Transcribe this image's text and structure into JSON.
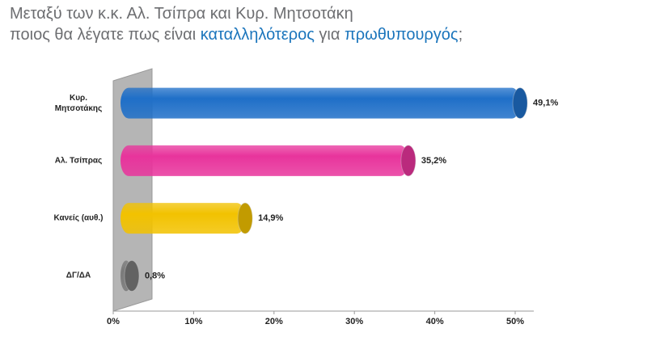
{
  "chart_data": {
    "type": "bar",
    "orientation": "horizontal",
    "title_lines": [
      [
        {
          "text": "Μεταξύ των κ.κ. Αλ. Τσίπρα και Κυρ. Μητσοτάκη",
          "color": "#6d6e71"
        }
      ],
      [
        {
          "text": "ποιος θα λέγατε πως είναι ",
          "color": "#6d6e71"
        },
        {
          "text": "καταλληλότερος",
          "color": "#1b75bc"
        },
        {
          "text": " για ",
          "color": "#6d6e71"
        },
        {
          "text": "πρωθυπουργός",
          "color": "#1b75bc"
        },
        {
          "text": ";",
          "color": "#6d6e71"
        }
      ]
    ],
    "categories": [
      "Κυρ. Μητσοτάκης",
      "Αλ. Τσίπρας",
      "Κανείς (αυθ.)",
      "ΔΓ/ΔΑ"
    ],
    "values": [
      49.1,
      35.2,
      14.9,
      0.8
    ],
    "value_labels": [
      "49,1%",
      "35,2%",
      "14,9%",
      "0,8%"
    ],
    "colors": [
      "#1f6fc8",
      "#e8349c",
      "#f2c200",
      "#7a7a7a"
    ],
    "xlim": [
      0,
      50
    ],
    "xticks": [
      {
        "value": 0,
        "label": "0%"
      },
      {
        "value": 10,
        "label": "10%"
      },
      {
        "value": 20,
        "label": "20%"
      },
      {
        "value": 30,
        "label": "30%"
      },
      {
        "value": 40,
        "label": "40%"
      },
      {
        "value": 50,
        "label": "50%"
      }
    ]
  }
}
